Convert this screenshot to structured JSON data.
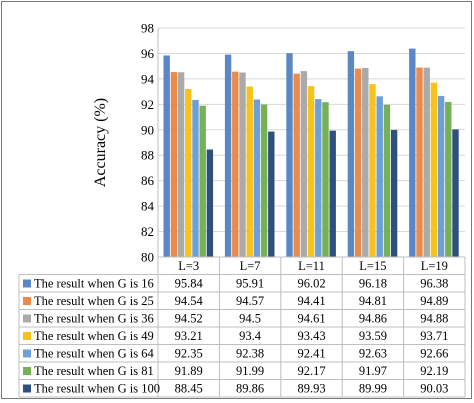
{
  "chart_data": {
    "type": "bar",
    "ylabel": "Accuracy (%)",
    "xlabel": "",
    "ylim": [
      80,
      98
    ],
    "yticks": [
      80,
      82,
      84,
      86,
      88,
      90,
      92,
      94,
      96,
      98
    ],
    "grid": true,
    "legend_placement": "data-table-below",
    "categories": [
      "L=3",
      "L=7",
      "L=11",
      "L=15",
      "L=19"
    ],
    "series": [
      {
        "name": "The result when G is 16",
        "color": "#5b87c5",
        "values": [
          95.84,
          95.91,
          96.02,
          96.18,
          96.38
        ]
      },
      {
        "name": "The result when G is 25",
        "color": "#ec8a4c",
        "values": [
          94.54,
          94.57,
          94.41,
          94.81,
          94.89
        ]
      },
      {
        "name": "The result when G is 36",
        "color": "#aaaaaa",
        "values": [
          94.52,
          94.5,
          94.61,
          94.86,
          94.88
        ]
      },
      {
        "name": "The result when G is 49",
        "color": "#f7c21c",
        "values": [
          93.21,
          93.4,
          93.43,
          93.59,
          93.71
        ]
      },
      {
        "name": "The result when G is 64",
        "color": "#6f9fd8",
        "values": [
          92.35,
          92.38,
          92.41,
          92.63,
          92.66
        ]
      },
      {
        "name": "The result when G is 81",
        "color": "#76b255",
        "values": [
          91.89,
          91.99,
          92.17,
          91.97,
          92.19
        ]
      },
      {
        "name": "The result when G is 100",
        "color": "#2f4f7c",
        "values": [
          88.45,
          89.86,
          89.93,
          89.99,
          90.03
        ]
      }
    ]
  }
}
